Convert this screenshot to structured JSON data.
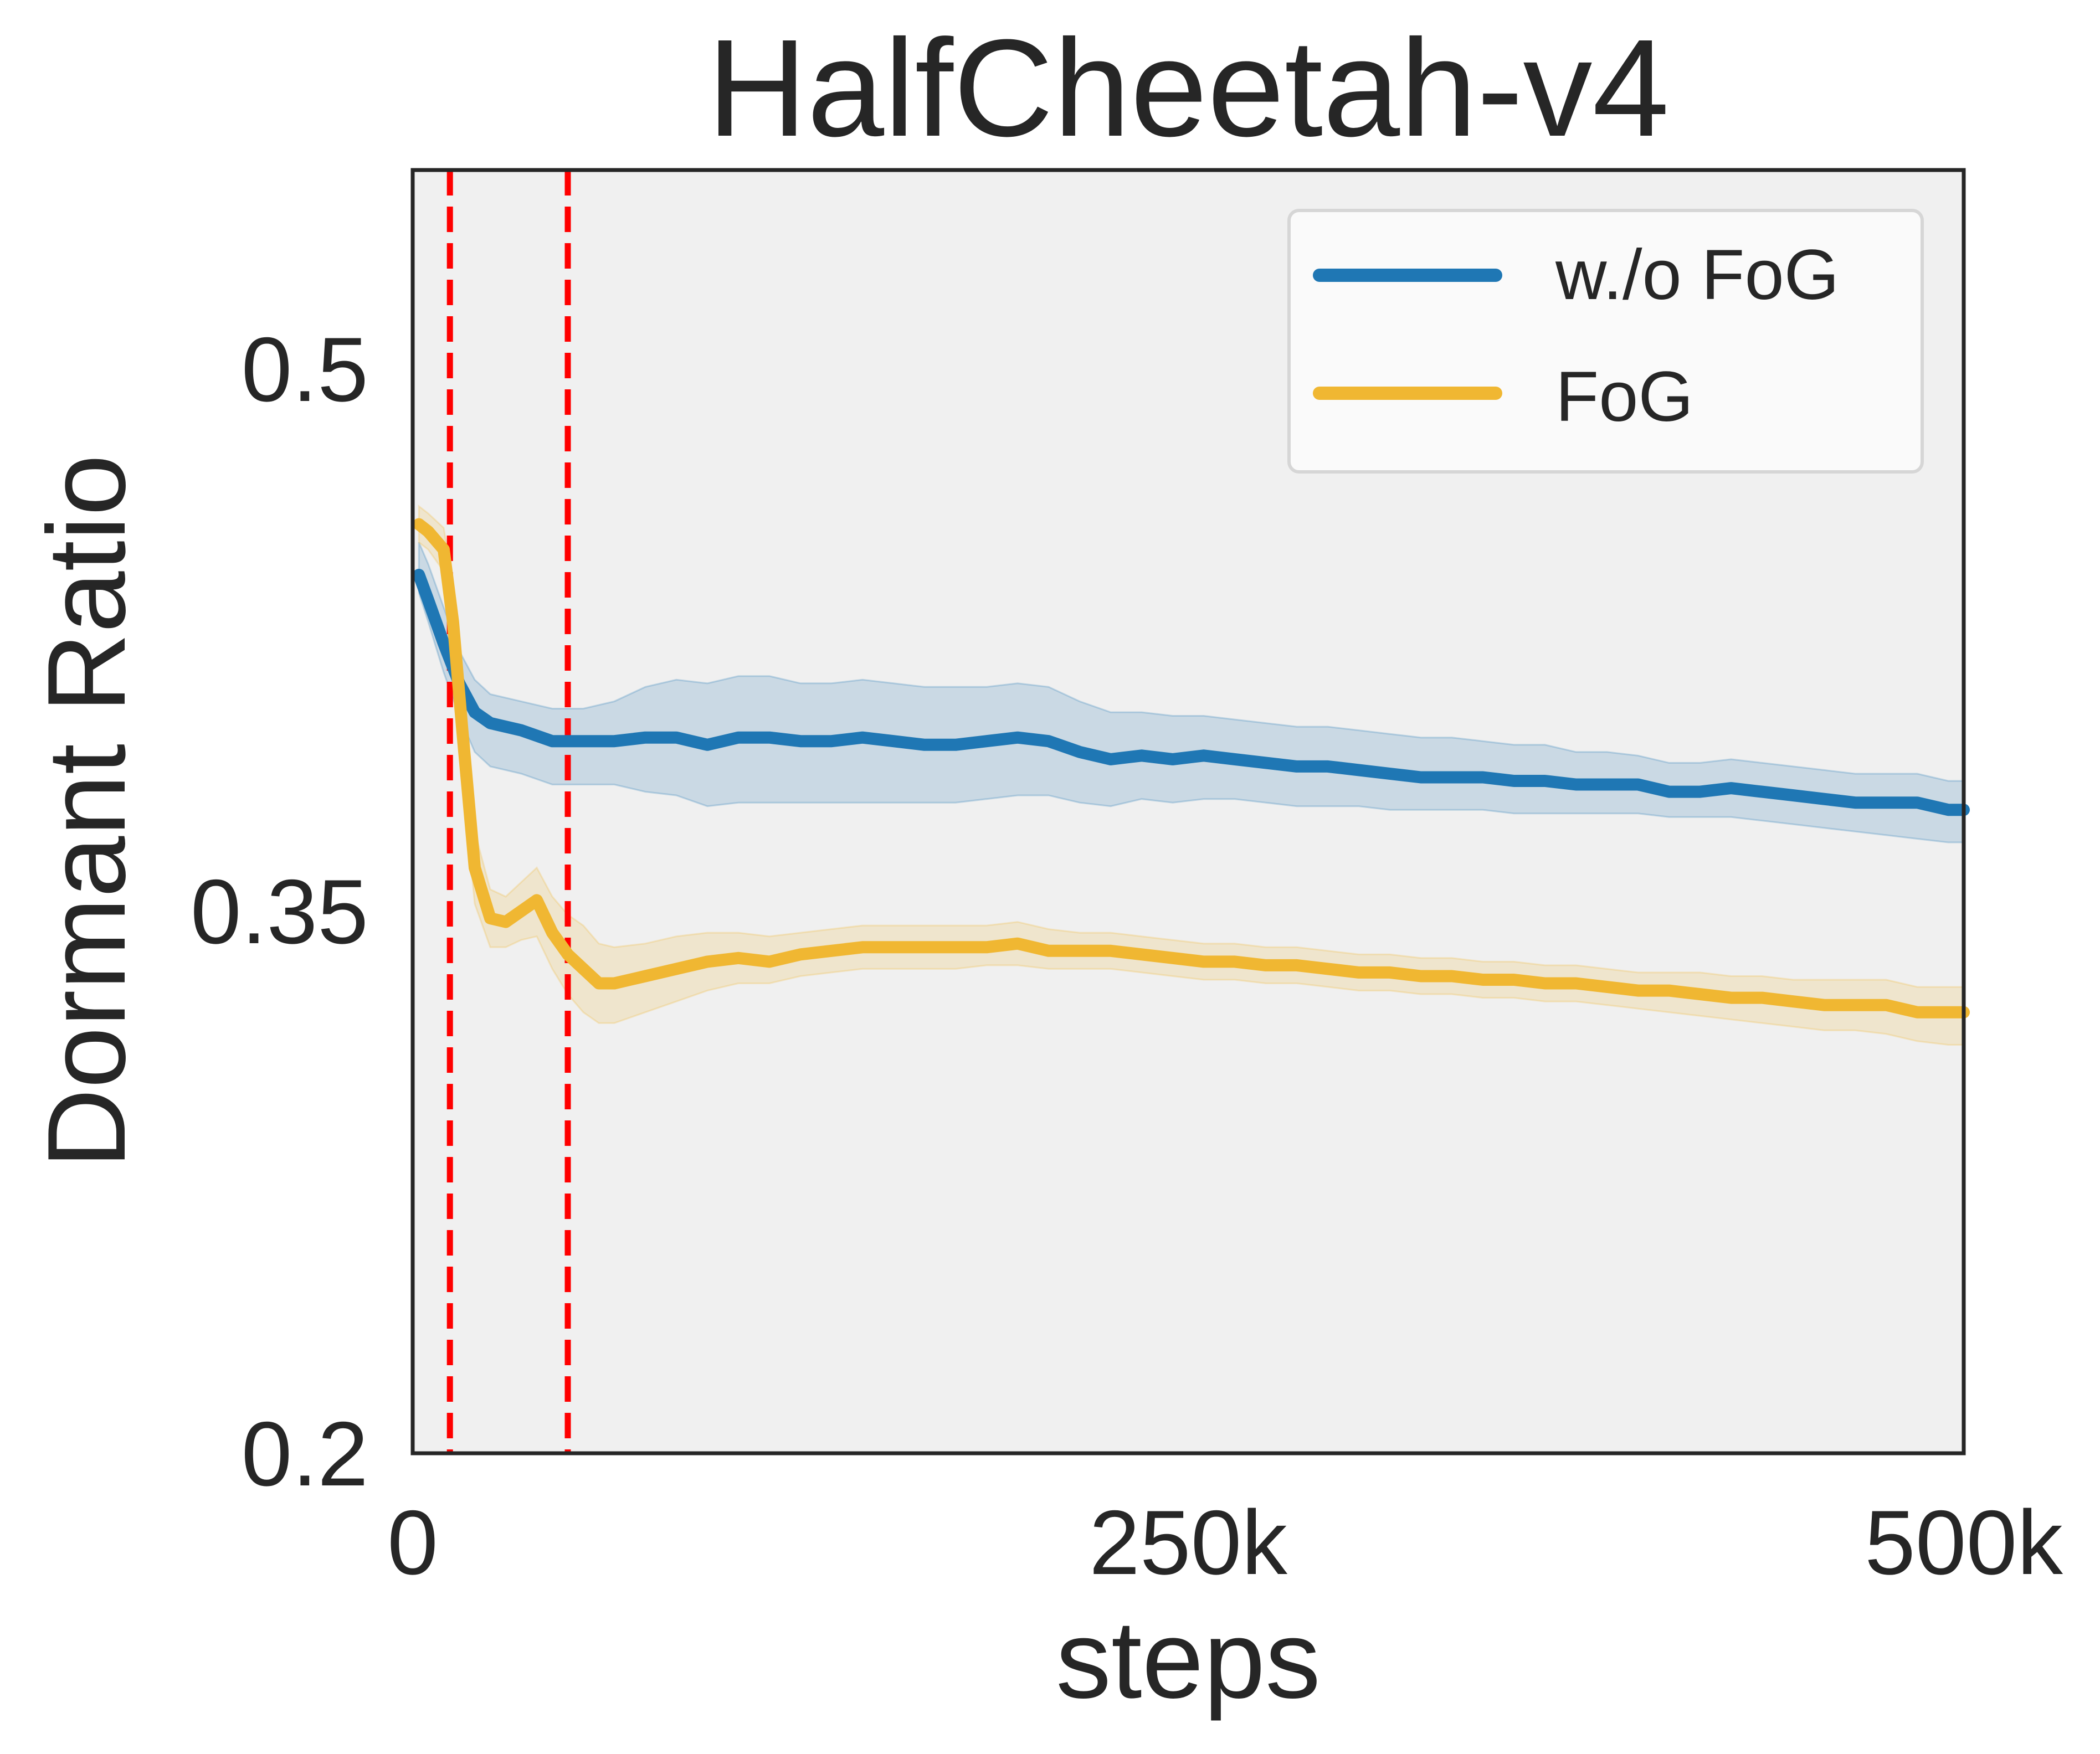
{
  "chart_data": {
    "type": "line",
    "title": "HalfCheetah-v4",
    "xlabel": "steps",
    "ylabel": "Dormant Ratio",
    "xlim": [
      0,
      500000
    ],
    "ylim": [
      0.2,
      0.555
    ],
    "xticks": [
      {
        "value": 0,
        "label": "0"
      },
      {
        "value": 250000,
        "label": "250k"
      },
      {
        "value": 500000,
        "label": "500k"
      }
    ],
    "yticks": [
      {
        "value": 0.2,
        "label": "0.2"
      },
      {
        "value": 0.35,
        "label": "0.35"
      },
      {
        "value": 0.5,
        "label": "0.5"
      }
    ],
    "grid": false,
    "background_color": "#f0f0f0",
    "legend_position": "top-right",
    "vlines": {
      "x": [
        12000,
        50000
      ],
      "color": "#ff0000",
      "style": "dashed"
    },
    "series": [
      {
        "name": "w./o FoG",
        "color": "#1f77b4",
        "x": [
          2000,
          5000,
          10000,
          15000,
          20000,
          25000,
          35000,
          45000,
          55000,
          65000,
          75000,
          85000,
          95000,
          105000,
          115000,
          125000,
          135000,
          145000,
          155000,
          165000,
          175000,
          185000,
          195000,
          205000,
          215000,
          225000,
          235000,
          245000,
          255000,
          265000,
          275000,
          285000,
          295000,
          305000,
          315000,
          325000,
          335000,
          345000,
          355000,
          365000,
          375000,
          385000,
          395000,
          405000,
          415000,
          425000,
          435000,
          445000,
          455000,
          465000,
          475000,
          485000,
          495000,
          500000
        ],
        "y": [
          0.443,
          0.436,
          0.424,
          0.413,
          0.405,
          0.402,
          0.4,
          0.397,
          0.397,
          0.397,
          0.398,
          0.398,
          0.396,
          0.398,
          0.398,
          0.397,
          0.397,
          0.398,
          0.397,
          0.396,
          0.396,
          0.397,
          0.398,
          0.397,
          0.394,
          0.392,
          0.393,
          0.392,
          0.393,
          0.392,
          0.391,
          0.39,
          0.39,
          0.389,
          0.388,
          0.387,
          0.387,
          0.387,
          0.386,
          0.386,
          0.385,
          0.385,
          0.385,
          0.383,
          0.383,
          0.384,
          0.383,
          0.382,
          0.381,
          0.38,
          0.38,
          0.38,
          0.378,
          0.378
        ],
        "lower": [
          0.438,
          0.43,
          0.416,
          0.404,
          0.394,
          0.39,
          0.388,
          0.385,
          0.385,
          0.385,
          0.383,
          0.382,
          0.379,
          0.38,
          0.38,
          0.38,
          0.38,
          0.38,
          0.38,
          0.38,
          0.38,
          0.381,
          0.382,
          0.382,
          0.38,
          0.379,
          0.381,
          0.38,
          0.381,
          0.381,
          0.38,
          0.379,
          0.379,
          0.379,
          0.378,
          0.378,
          0.378,
          0.378,
          0.377,
          0.377,
          0.377,
          0.377,
          0.377,
          0.376,
          0.376,
          0.376,
          0.375,
          0.374,
          0.373,
          0.372,
          0.371,
          0.37,
          0.369,
          0.369
        ],
        "upper": [
          0.452,
          0.446,
          0.434,
          0.422,
          0.414,
          0.41,
          0.408,
          0.406,
          0.406,
          0.408,
          0.412,
          0.414,
          0.413,
          0.415,
          0.415,
          0.413,
          0.413,
          0.414,
          0.413,
          0.412,
          0.412,
          0.412,
          0.413,
          0.412,
          0.408,
          0.405,
          0.405,
          0.404,
          0.404,
          0.403,
          0.402,
          0.401,
          0.401,
          0.4,
          0.399,
          0.398,
          0.398,
          0.397,
          0.396,
          0.396,
          0.394,
          0.394,
          0.393,
          0.391,
          0.391,
          0.392,
          0.391,
          0.39,
          0.389,
          0.388,
          0.388,
          0.388,
          0.386,
          0.386
        ]
      },
      {
        "name": "FoG",
        "color": "#f0b732",
        "x": [
          2000,
          5000,
          10000,
          13000,
          16000,
          20000,
          25000,
          30000,
          35000,
          40000,
          45000,
          50000,
          55000,
          60000,
          65000,
          75000,
          85000,
          95000,
          105000,
          115000,
          125000,
          135000,
          145000,
          155000,
          165000,
          175000,
          185000,
          195000,
          205000,
          215000,
          225000,
          235000,
          245000,
          255000,
          265000,
          275000,
          285000,
          295000,
          305000,
          315000,
          325000,
          335000,
          345000,
          355000,
          365000,
          375000,
          385000,
          395000,
          405000,
          415000,
          425000,
          435000,
          445000,
          455000,
          465000,
          475000,
          485000,
          495000,
          500000
        ],
        "y": [
          0.457,
          0.455,
          0.45,
          0.43,
          0.4,
          0.362,
          0.348,
          0.347,
          0.35,
          0.353,
          0.344,
          0.338,
          0.334,
          0.33,
          0.33,
          0.332,
          0.334,
          0.336,
          0.337,
          0.336,
          0.338,
          0.339,
          0.34,
          0.34,
          0.34,
          0.34,
          0.34,
          0.341,
          0.339,
          0.339,
          0.339,
          0.338,
          0.337,
          0.336,
          0.336,
          0.335,
          0.335,
          0.334,
          0.333,
          0.333,
          0.332,
          0.332,
          0.331,
          0.331,
          0.33,
          0.33,
          0.329,
          0.328,
          0.328,
          0.327,
          0.326,
          0.326,
          0.325,
          0.324,
          0.324,
          0.324,
          0.322,
          0.322,
          0.322
        ],
        "lower": [
          0.452,
          0.45,
          0.444,
          0.42,
          0.388,
          0.352,
          0.34,
          0.34,
          0.342,
          0.343,
          0.334,
          0.327,
          0.322,
          0.319,
          0.319,
          0.322,
          0.325,
          0.328,
          0.33,
          0.33,
          0.332,
          0.333,
          0.334,
          0.334,
          0.334,
          0.334,
          0.335,
          0.335,
          0.334,
          0.334,
          0.334,
          0.333,
          0.332,
          0.331,
          0.331,
          0.33,
          0.33,
          0.329,
          0.328,
          0.328,
          0.327,
          0.327,
          0.326,
          0.326,
          0.325,
          0.325,
          0.324,
          0.323,
          0.322,
          0.321,
          0.32,
          0.319,
          0.318,
          0.317,
          0.317,
          0.316,
          0.314,
          0.313,
          0.313
        ],
        "upper": [
          0.462,
          0.46,
          0.456,
          0.44,
          0.412,
          0.372,
          0.356,
          0.354,
          0.358,
          0.362,
          0.354,
          0.349,
          0.346,
          0.341,
          0.34,
          0.341,
          0.343,
          0.344,
          0.344,
          0.343,
          0.344,
          0.345,
          0.346,
          0.346,
          0.346,
          0.346,
          0.346,
          0.347,
          0.345,
          0.344,
          0.344,
          0.343,
          0.342,
          0.341,
          0.341,
          0.34,
          0.34,
          0.339,
          0.338,
          0.338,
          0.337,
          0.337,
          0.336,
          0.336,
          0.335,
          0.335,
          0.334,
          0.333,
          0.333,
          0.333,
          0.332,
          0.332,
          0.331,
          0.331,
          0.331,
          0.331,
          0.329,
          0.329,
          0.329
        ]
      }
    ]
  }
}
